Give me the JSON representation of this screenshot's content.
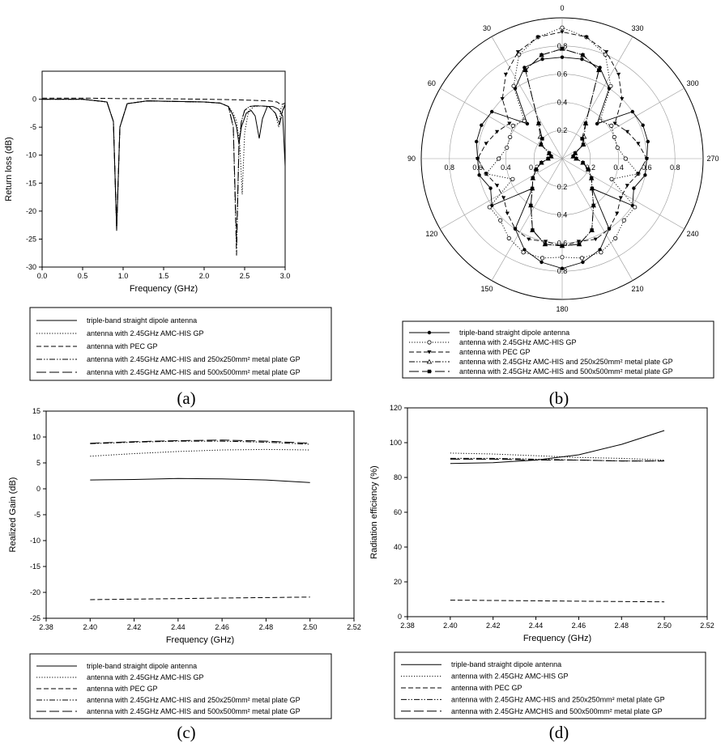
{
  "chart_data": [
    {
      "id": "a",
      "type": "line",
      "panel_label": "(a)",
      "xlabel": "Frequency (GHz)",
      "ylabel": "Return loss (dB)",
      "xlim": [
        0,
        3
      ],
      "ylim": [
        -30,
        5
      ],
      "xticks": [
        0,
        0.5,
        1,
        1.5,
        2,
        2.5,
        3
      ],
      "xtick_labels": [
        "0.0",
        "0.5",
        "1.0",
        "1.5",
        "2.0",
        "2.5",
        "3.0"
      ],
      "yticks": [
        0,
        -5,
        -10,
        -15,
        -20,
        -25,
        -30
      ],
      "ytick_labels": [
        "0",
        "-5",
        "-10",
        "-15",
        "-20",
        "-25",
        "-30"
      ],
      "grid": false,
      "legend_position": "below",
      "series": [
        {
          "name": "triple-band straight dipole antenna",
          "style": "solid",
          "x": [
            0,
            0.5,
            0.8,
            0.88,
            0.92,
            0.96,
            1.05,
            1.3,
            1.6,
            2.0,
            2.2,
            2.3,
            2.36,
            2.4,
            2.43,
            2.46,
            2.52,
            2.58,
            2.63,
            2.68,
            2.72,
            2.78,
            2.85,
            2.92,
            2.97,
            3.0
          ],
          "y": [
            0,
            0,
            -0.5,
            -4,
            -23.5,
            -5,
            -0.8,
            -0.3,
            -0.4,
            -0.5,
            -0.7,
            -1.3,
            -3,
            -5,
            -8,
            -5,
            -2.5,
            -2,
            -3,
            -7,
            -3.5,
            -1.3,
            -1.3,
            -1.8,
            -3,
            -12
          ]
        },
        {
          "name": "antenna with 2.45GHz AMC-HIS  GP",
          "style": "dotted",
          "x": [
            0,
            0.5,
            0.8,
            0.88,
            0.92,
            0.96,
            1.05,
            1.3,
            1.6,
            2.0,
            2.2,
            2.3,
            2.36,
            2.4,
            2.44,
            2.47,
            2.5,
            2.55,
            2.62,
            2.7,
            2.8,
            2.88,
            2.92,
            2.95,
            3.0
          ],
          "y": [
            0,
            0,
            -0.5,
            -4,
            -23.5,
            -5,
            -0.8,
            -0.3,
            -0.4,
            -0.5,
            -0.7,
            -1.3,
            -2.5,
            -4,
            -8,
            -17,
            -6,
            -2,
            -1.3,
            -1.2,
            -1.3,
            -2.5,
            -5,
            -1.5,
            -1
          ]
        },
        {
          "name": "antenna with PEC GP",
          "style": "dashed",
          "x": [
            0,
            0.5,
            1.0,
            1.5,
            2.0,
            2.4,
            2.6,
            2.8,
            2.9,
            2.95,
            3.0
          ],
          "y": [
            0.2,
            0.2,
            0.1,
            0.1,
            0,
            -0.1,
            -0.2,
            -0.3,
            -0.5,
            -1,
            -0.7
          ]
        },
        {
          "name": "antenna with 2.45GHz AMC-HIS and 250x250mm² metal plate GP",
          "style": "dashdotdot",
          "x": [
            0,
            0.5,
            0.8,
            0.88,
            0.92,
            0.96,
            1.05,
            1.3,
            1.6,
            2.0,
            2.2,
            2.3,
            2.36,
            2.4,
            2.43,
            2.46,
            2.5,
            2.56,
            2.62,
            2.7,
            2.8,
            2.88,
            2.93,
            2.97,
            3.0
          ],
          "y": [
            0,
            0,
            -0.5,
            -4,
            -23,
            -5,
            -0.8,
            -0.3,
            -0.4,
            -0.5,
            -0.7,
            -1.3,
            -5,
            -28,
            -8,
            -4,
            -2,
            -1.3,
            -1.2,
            -1.2,
            -1.3,
            -2.5,
            -4.5,
            -2,
            -1
          ]
        },
        {
          "name": "antenna with 2.45GHz AMC-HIS and 500x500mm² metal plate GP",
          "style": "longdash",
          "x": [
            0,
            0.5,
            0.8,
            0.88,
            0.92,
            0.96,
            1.05,
            1.3,
            1.6,
            2.0,
            2.2,
            2.3,
            2.36,
            2.4,
            2.43,
            2.46,
            2.5,
            2.56,
            2.62,
            2.7,
            2.8,
            2.88,
            2.93,
            2.97,
            3.0
          ],
          "y": [
            0,
            0,
            -0.5,
            -4,
            -23,
            -5,
            -0.8,
            -0.3,
            -0.4,
            -0.5,
            -0.7,
            -1.3,
            -5,
            -26,
            -8,
            -4,
            -2,
            -1.3,
            -1.2,
            -1.2,
            -1.3,
            -2.5,
            -4.5,
            -2,
            -1
          ]
        }
      ]
    },
    {
      "id": "b",
      "type": "polar",
      "panel_label": "(b)",
      "rlim": [
        0,
        1.0
      ],
      "rticks": [
        0.2,
        0.4,
        0.6,
        0.8
      ],
      "rtick_labels": [
        "0.2",
        "0.4",
        "0.6",
        "0.8"
      ],
      "angle_labels": [
        "0",
        "30",
        "60",
        "90",
        "120",
        "150",
        "180",
        "210",
        "240",
        "270",
        "300",
        "330"
      ],
      "angle_label_values": [
        0,
        30,
        60,
        90,
        120,
        150,
        180,
        210,
        240,
        270,
        300,
        330
      ],
      "legend_position": "below",
      "series": [
        {
          "name": "triple-band straight dipole antenna",
          "style": "solid",
          "marker": "circle",
          "r": [
            0.72,
            0.72,
            0.7,
            0.6,
            0.35,
            0.6,
            0.62,
            0.62,
            0.6,
            0.6,
            0.55,
            0.6,
            0.3,
            0.6,
            0.7,
            0.75,
            0.78
          ]
        },
        {
          "name": "antenna with 2.45GHz AMC-HIS  GP",
          "style": "dotted",
          "marker": "open-circle",
          "r": [
            0.93,
            0.88,
            0.8,
            0.62,
            0.38,
            0.42,
            0.4,
            0.4,
            0.45,
            0.55,
            0.38,
            0.62,
            0.62,
            0.68,
            0.72,
            0.72,
            0.7
          ]
        },
        {
          "name": "antenna with PEC GP",
          "style": "dashed",
          "marker": "triangle-down",
          "r": [
            0.9,
            0.88,
            0.82,
            0.72,
            0.6,
            0.45,
            0.5,
            0.55,
            0.6,
            0.55,
            0.5,
            0.5,
            0.55,
            0.6,
            0.62,
            0.6,
            0.62
          ]
        },
        {
          "name": "antenna with 2.45GHz AMC-HIS and 250x250mm² metal plate GP",
          "style": "dashdotdot",
          "marker": "triangle-up",
          "r": [
            0.78,
            0.75,
            0.68,
            0.3,
            0.22,
            0.18,
            0.1,
            0.08,
            0.1,
            0.15,
            0.2,
            0.25,
            0.3,
            0.4,
            0.55,
            0.62,
            0.62
          ]
        },
        {
          "name": "antenna with 2.45GHz AMC-HIS and 500x500mm² metal plate GP",
          "style": "longdash",
          "marker": "square",
          "r": [
            0.78,
            0.75,
            0.68,
            0.3,
            0.2,
            0.18,
            0.1,
            0.08,
            0.1,
            0.15,
            0.2,
            0.25,
            0.3,
            0.4,
            0.55,
            0.62,
            0.62
          ]
        }
      ]
    },
    {
      "id": "c",
      "type": "line",
      "panel_label": "(c)",
      "xlabel": "Frequency (GHz)",
      "ylabel": "Realized Gain (dB)",
      "xlim": [
        2.38,
        2.52
      ],
      "ylim": [
        -25,
        15
      ],
      "xticks": [
        2.38,
        2.4,
        2.42,
        2.44,
        2.46,
        2.48,
        2.5,
        2.52
      ],
      "xtick_labels": [
        "2.38",
        "2.40",
        "2.42",
        "2.44",
        "2.46",
        "2.48",
        "2.50",
        "2.52"
      ],
      "yticks": [
        15,
        10,
        5,
        0,
        -5,
        -10,
        -15,
        -20,
        -25
      ],
      "ytick_labels": [
        "15",
        "10",
        "5",
        "0",
        "-5",
        "-10",
        "-15",
        "-20",
        "-25"
      ],
      "grid": false,
      "legend_position": "below",
      "series": [
        {
          "name": "triple-band straight dipole antenna",
          "style": "solid",
          "x": [
            2.4,
            2.42,
            2.44,
            2.46,
            2.48,
            2.5
          ],
          "y": [
            1.7,
            1.8,
            2.0,
            1.9,
            1.7,
            1.2
          ]
        },
        {
          "name": "antenna with 2.45GHz AMC-HIS GP",
          "style": "dotted",
          "x": [
            2.4,
            2.42,
            2.44,
            2.46,
            2.48,
            2.5
          ],
          "y": [
            6.3,
            6.8,
            7.2,
            7.5,
            7.6,
            7.5
          ]
        },
        {
          "name": "antenna with PEC GP",
          "style": "dashed",
          "x": [
            2.4,
            2.42,
            2.44,
            2.46,
            2.48,
            2.5
          ],
          "y": [
            -21.4,
            -21.3,
            -21.2,
            -21.1,
            -21.0,
            -20.9
          ]
        },
        {
          "name": "antenna with 2.45GHz AMC-HIS and 250x250mm² metal plate GP",
          "style": "dashdotdot",
          "x": [
            2.4,
            2.42,
            2.44,
            2.46,
            2.48,
            2.5
          ],
          "y": [
            8.7,
            9.0,
            9.2,
            9.2,
            9.0,
            8.6
          ]
        },
        {
          "name": "antenna with 2.45GHz AMC-HIS and 500x500mm² metal plate GP",
          "style": "longdash",
          "x": [
            2.4,
            2.42,
            2.44,
            2.46,
            2.48,
            2.5
          ],
          "y": [
            8.8,
            9.1,
            9.3,
            9.4,
            9.2,
            8.8
          ]
        }
      ]
    },
    {
      "id": "d",
      "type": "line",
      "panel_label": "(d)",
      "xlabel": "Frequency (GHz)",
      "ylabel": "Radiation efficiency (%)",
      "xlim": [
        2.38,
        2.52
      ],
      "ylim": [
        0,
        120
      ],
      "xticks": [
        2.38,
        2.4,
        2.42,
        2.44,
        2.46,
        2.48,
        2.5,
        2.52
      ],
      "xtick_labels": [
        "2.38",
        "2.40",
        "2.42",
        "2.44",
        "2.46",
        "2.48",
        "2.50",
        "2.52"
      ],
      "yticks": [
        120,
        100,
        80,
        60,
        40,
        20,
        0
      ],
      "ytick_labels": [
        "120",
        "100",
        "80",
        "60",
        "40",
        "20",
        "0"
      ],
      "grid": false,
      "legend_position": "below",
      "series": [
        {
          "name": "triple-band straight dipole antenna",
          "style": "solid",
          "x": [
            2.4,
            2.42,
            2.44,
            2.46,
            2.48,
            2.5
          ],
          "y": [
            88,
            88.5,
            90,
            93,
            99,
            107
          ]
        },
        {
          "name": "antenna with 2.45GHz AMC-HIS GP",
          "style": "dotted",
          "x": [
            2.4,
            2.42,
            2.44,
            2.46,
            2.48,
            2.5
          ],
          "y": [
            94,
            93.5,
            92.5,
            91.5,
            91,
            90
          ]
        },
        {
          "name": "antenna with PEC GP",
          "style": "dashed",
          "x": [
            2.4,
            2.42,
            2.44,
            2.46,
            2.48,
            2.5
          ],
          "y": [
            9.5,
            9.3,
            9.1,
            8.9,
            8.7,
            8.5
          ]
        },
        {
          "name": "antenna with 2.45GHz AMC-HIS and 250x250mm² metal plate GP",
          "style": "dashdotdot",
          "x": [
            2.4,
            2.42,
            2.44,
            2.46,
            2.48,
            2.5
          ],
          "y": [
            91,
            91,
            90.5,
            90,
            89.5,
            89.5
          ]
        },
        {
          "name": "antenna with 2.45GHz AMCHIS and 500x500mm² metal plate GP",
          "style": "longdash",
          "x": [
            2.4,
            2.42,
            2.44,
            2.46,
            2.48,
            2.5
          ],
          "y": [
            90.5,
            90.5,
            90,
            90,
            89.5,
            89.5
          ]
        }
      ]
    }
  ]
}
